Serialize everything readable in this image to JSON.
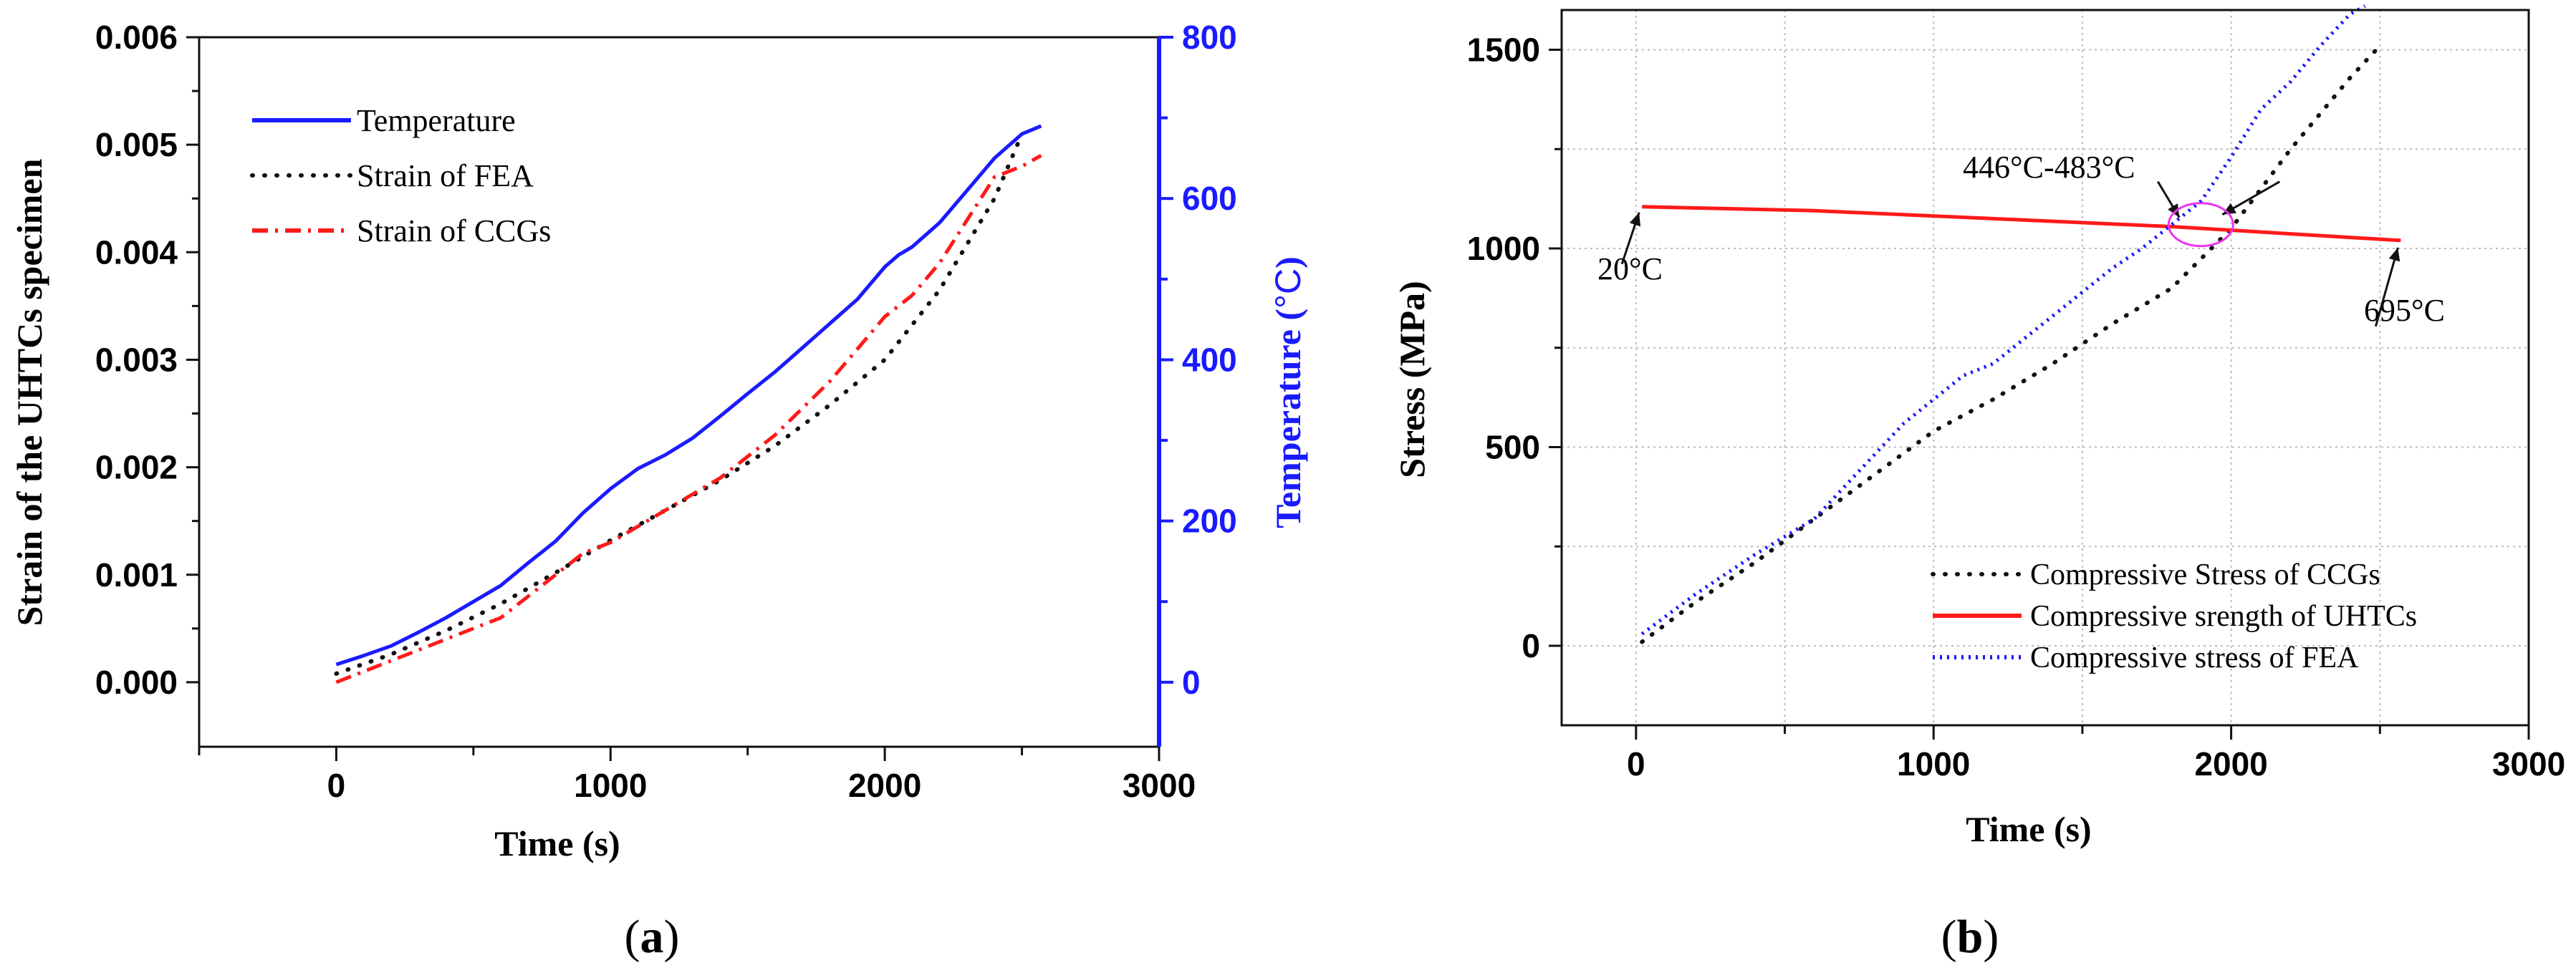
{
  "colors": {
    "blue": "#1a1aff",
    "red": "#ff1a1a",
    "black": "#111111",
    "magenta": "#ee33ee",
    "grid": "#bdbdbd"
  },
  "chart_data": [
    {
      "id": "a",
      "type": "line",
      "panel_label_open": "(",
      "panel_label_letter": "a",
      "panel_label_close": ")",
      "xlabel": "Time (s)",
      "ylabel": "Strain of the UHTCs specimen",
      "y2label_text": "Temperature (",
      "y2label_unit": "°C",
      "y2label_close": ")",
      "xlim": [
        -500,
        3000
      ],
      "ylim": [
        -0.0006,
        0.006
      ],
      "y2lim": [
        -80,
        800
      ],
      "xticks": [
        0,
        1000,
        2000,
        3000
      ],
      "xtick_labels": [
        "0",
        "1000",
        "2000",
        "3000"
      ],
      "yticks": [
        0,
        0.001,
        0.002,
        0.003,
        0.004,
        0.005,
        0.006
      ],
      "ytick_labels": [
        "0.000",
        "0.001",
        "0.002",
        "0.003",
        "0.004",
        "0.005",
        "0.006"
      ],
      "y2ticks": [
        0,
        200,
        400,
        600,
        800
      ],
      "y2tick_labels": [
        "0",
        "200",
        "400",
        "600",
        "800"
      ],
      "legend_position": "top-left",
      "grid": false,
      "series": [
        {
          "name": "Temperature",
          "axis": "right",
          "style": "solid",
          "color": "#1a1aff",
          "x": [
            0,
            100,
            200,
            300,
            400,
            500,
            600,
            700,
            800,
            900,
            1000,
            1100,
            1200,
            1300,
            1400,
            1500,
            1600,
            1700,
            1800,
            1900,
            2000,
            2050,
            2100,
            2200,
            2300,
            2400,
            2500,
            2570
          ],
          "y": [
            22,
            33,
            45,
            62,
            80,
            100,
            120,
            148,
            175,
            210,
            240,
            265,
            282,
            303,
            330,
            358,
            385,
            415,
            445,
            475,
            515,
            530,
            540,
            570,
            610,
            650,
            680,
            690
          ]
        },
        {
          "name": "Strain of FEA",
          "axis": "left",
          "style": "dotted",
          "color": "#111111",
          "x": [
            0,
            200,
            400,
            600,
            800,
            1000,
            1200,
            1400,
            1600,
            1800,
            2000,
            2200,
            2400,
            2500
          ],
          "y": [
            8e-05,
            0.00026,
            0.00048,
            0.00073,
            0.00102,
            0.00132,
            0.0016,
            0.00188,
            0.0022,
            0.00258,
            0.003,
            0.00365,
            0.0045,
            0.0051
          ]
        },
        {
          "name": "Strain of CCGs",
          "axis": "left",
          "style": "dashdot",
          "color": "#ff1a1a",
          "x": [
            0,
            100,
            200,
            300,
            400,
            500,
            600,
            700,
            800,
            900,
            1000,
            1100,
            1200,
            1300,
            1400,
            1500,
            1600,
            1700,
            1800,
            1900,
            2000,
            2100,
            2200,
            2300,
            2400,
            2500,
            2570
          ],
          "y": [
            0.0,
            0.0001,
            0.0002,
            0.0003,
            0.0004,
            0.0005,
            0.0006,
            0.0008,
            0.001,
            0.0012,
            0.0013,
            0.00145,
            0.0016,
            0.00175,
            0.0019,
            0.0021,
            0.0023,
            0.00255,
            0.0028,
            0.0031,
            0.0034,
            0.0036,
            0.0039,
            0.0043,
            0.0047,
            0.0048,
            0.0049
          ]
        }
      ]
    },
    {
      "id": "b",
      "type": "line",
      "panel_label_open": "(",
      "panel_label_letter": "b",
      "panel_label_close": ")",
      "xlabel": "Time (s)",
      "ylabel": "Stress (MPa)",
      "xlim": [
        -250,
        3000
      ],
      "ylim": [
        -200,
        1600
      ],
      "xticks": [
        0,
        1000,
        2000,
        3000
      ],
      "xtick_labels": [
        "0",
        "1000",
        "2000",
        "3000"
      ],
      "yticks": [
        0,
        500,
        1000,
        1500
      ],
      "ytick_labels": [
        "0",
        "500",
        "1000",
        "1500"
      ],
      "legend_position": "bottom-right",
      "grid": true,
      "series": [
        {
          "name": "Compressive Stress of CCGs",
          "style": "dotted",
          "color": "#111111",
          "x": [
            20,
            200,
            400,
            600,
            800,
            1000,
            1200,
            1400,
            1600,
            1800,
            2000,
            2200,
            2400,
            2500
          ],
          "y": [
            10,
            110,
            210,
            320,
            430,
            540,
            620,
            710,
            810,
            900,
            1050,
            1250,
            1430,
            1510
          ]
        },
        {
          "name": "Compressive srength of UHTCs",
          "style": "solid",
          "color": "#ff1a1a",
          "x": [
            20,
            600,
            1200,
            1800,
            2570
          ],
          "y": [
            1105,
            1095,
            1075,
            1055,
            1020
          ]
        },
        {
          "name": "Compressive stress of FEA",
          "style": "dotted",
          "color": "#1a1aff",
          "x": [
            20,
            200,
            400,
            600,
            700,
            800,
            900,
            1000,
            1100,
            1200,
            1300,
            1400,
            1500,
            1600,
            1700,
            1800,
            1900,
            2000,
            2100,
            2200,
            2300,
            2400,
            2450
          ],
          "y": [
            30,
            130,
            230,
            320,
            400,
            480,
            560,
            620,
            680,
            710,
            770,
            830,
            890,
            950,
            1000,
            1060,
            1120,
            1230,
            1350,
            1420,
            1510,
            1590,
            1610
          ]
        }
      ],
      "annotations": [
        {
          "text": "20°C",
          "x": 20,
          "y": 1105
        },
        {
          "text": "695°C",
          "x": 2570,
          "y": 1020
        },
        {
          "text": "446°C-483°C",
          "x": 1850,
          "y": 1060
        }
      ]
    }
  ]
}
